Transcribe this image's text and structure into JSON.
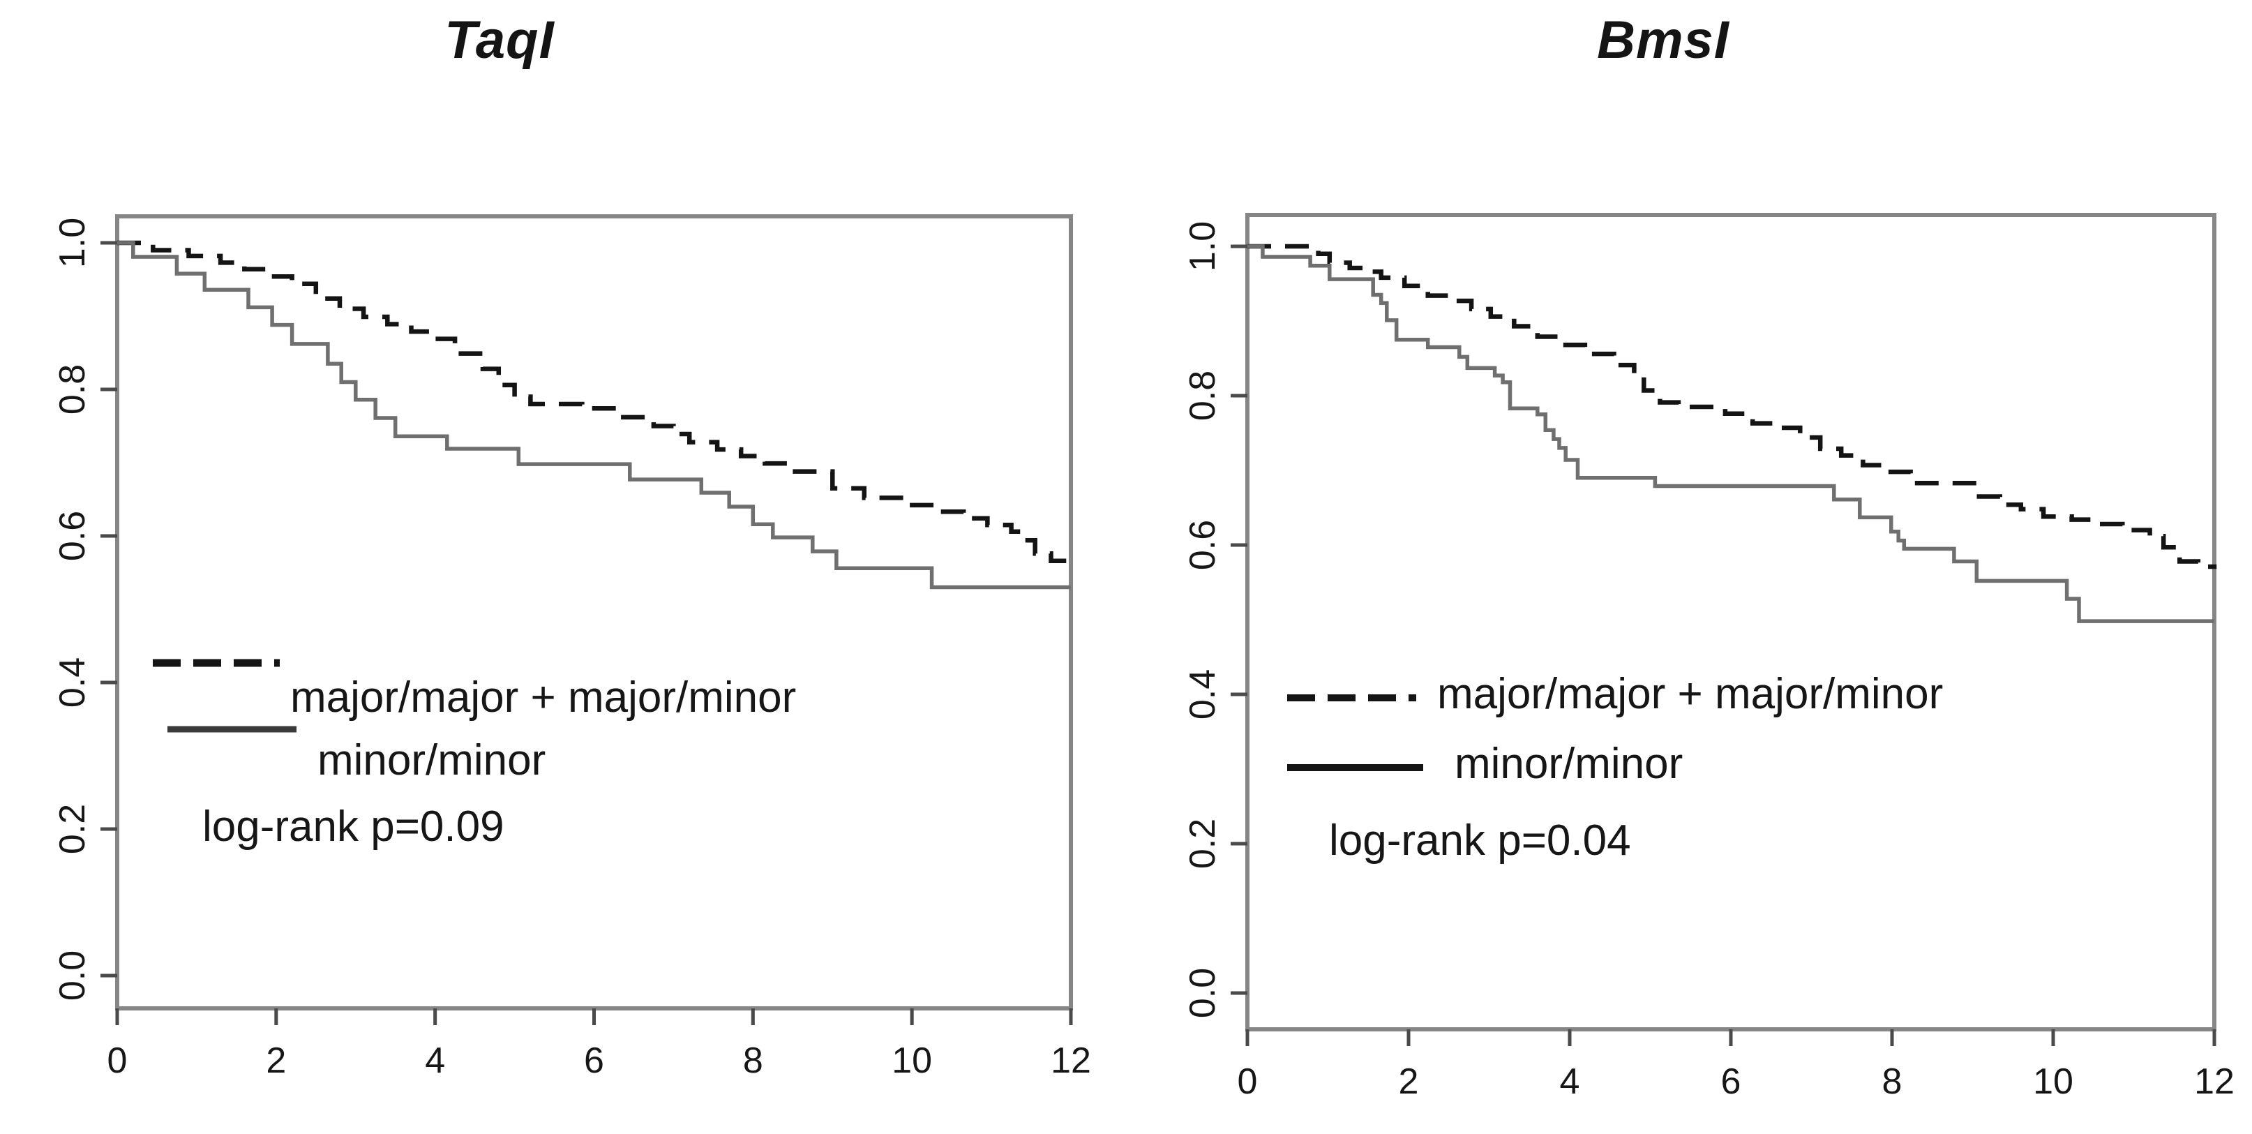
{
  "chart_data": [
    {
      "id": "taqi",
      "type": "line",
      "subtype": "kaplan-meier-step",
      "title": "TaqI",
      "xlabel": "",
      "ylabel": "",
      "xlim": [
        0,
        12
      ],
      "ylim": [
        0.0,
        1.0
      ],
      "grid": false,
      "xticks": [
        "0",
        "2",
        "4",
        "6",
        "8",
        "10",
        "12"
      ],
      "yticks": [
        "1.0",
        "0.8",
        "0.6",
        "0.4",
        "0.2",
        "0.0"
      ],
      "legend": {
        "position": "inside-left-middle",
        "dashed_label": "major/major + major/minor",
        "solid_label": "minor/minor",
        "stat": "log-rank p=0.09"
      },
      "colors": {
        "dashed": "#141414",
        "solid": "#6f6f6f",
        "axis": "#868686",
        "tick": "#4a4a4a",
        "text": "#161616"
      },
      "series": [
        {
          "name": "major/major + major/minor",
          "style": "dashed",
          "points": [
            [
              0,
              1.0
            ],
            [
              0.45,
              0.99
            ],
            [
              0.9,
              0.982
            ],
            [
              1.3,
              0.973
            ],
            [
              1.6,
              0.964
            ],
            [
              1.9,
              0.954
            ],
            [
              2.2,
              0.944
            ],
            [
              2.5,
              0.924
            ],
            [
              2.8,
              0.91
            ],
            [
              3.1,
              0.899
            ],
            [
              3.4,
              0.889
            ],
            [
              3.7,
              0.879
            ],
            [
              4.0,
              0.869
            ],
            [
              4.25,
              0.849
            ],
            [
              4.6,
              0.828
            ],
            [
              4.8,
              0.806
            ],
            [
              5.0,
              0.79
            ],
            [
              5.2,
              0.78
            ],
            [
              5.85,
              0.774
            ],
            [
              6.3,
              0.762
            ],
            [
              6.75,
              0.75
            ],
            [
              7.0,
              0.739
            ],
            [
              7.2,
              0.728
            ],
            [
              7.55,
              0.718
            ],
            [
              7.85,
              0.709
            ],
            [
              8.15,
              0.699
            ],
            [
              8.45,
              0.688
            ],
            [
              9.0,
              0.665
            ],
            [
              9.4,
              0.652
            ],
            [
              9.9,
              0.642
            ],
            [
              10.3,
              0.633
            ],
            [
              10.65,
              0.624
            ],
            [
              10.95,
              0.615
            ],
            [
              11.25,
              0.606
            ],
            [
              11.4,
              0.594
            ],
            [
              11.55,
              0.576
            ],
            [
              11.75,
              0.566
            ],
            [
              12,
              0.561
            ]
          ]
        },
        {
          "name": "minor/minor",
          "style": "solid",
          "points": [
            [
              0,
              1.0
            ],
            [
              0.2,
              0.981
            ],
            [
              0.75,
              0.958
            ],
            [
              1.1,
              0.936
            ],
            [
              1.65,
              0.912
            ],
            [
              1.95,
              0.888
            ],
            [
              2.2,
              0.862
            ],
            [
              2.65,
              0.835
            ],
            [
              2.82,
              0.81
            ],
            [
              3.0,
              0.786
            ],
            [
              3.25,
              0.761
            ],
            [
              3.5,
              0.736
            ],
            [
              4.15,
              0.719
            ],
            [
              5.05,
              0.698
            ],
            [
              6.45,
              0.677
            ],
            [
              7.35,
              0.659
            ],
            [
              7.7,
              0.64
            ],
            [
              8.0,
              0.616
            ],
            [
              8.25,
              0.598
            ],
            [
              8.75,
              0.579
            ],
            [
              9.05,
              0.556
            ],
            [
              10.25,
              0.53
            ],
            [
              12,
              0.53
            ]
          ]
        }
      ]
    },
    {
      "id": "bmsi",
      "type": "line",
      "subtype": "kaplan-meier-step",
      "title": "BmsI",
      "xlabel": "",
      "ylabel": "",
      "xlim": [
        0,
        12
      ],
      "ylim": [
        0.0,
        1.0
      ],
      "grid": false,
      "xticks": [
        "0",
        "2",
        "4",
        "6",
        "8",
        "10",
        "12"
      ],
      "yticks": [
        "1.0",
        "0.8",
        "0.6",
        "0.4",
        "0.2",
        "0.0"
      ],
      "legend": {
        "position": "inside-left-middle",
        "dashed_label": "major/major + major/minor",
        "solid_label": "minor/minor",
        "stat": "log-rank p=0.04"
      },
      "colors": {
        "dashed": "#141414",
        "solid": "#6f6f6f",
        "axis": "#868686",
        "tick": "#4a4a4a",
        "text": "#161616"
      },
      "series": [
        {
          "name": "major/major + major/minor",
          "style": "dashed",
          "points": [
            [
              0,
              1.0
            ],
            [
              0.88,
              0.99
            ],
            [
              1.02,
              0.978
            ],
            [
              1.27,
              0.971
            ],
            [
              1.46,
              0.966
            ],
            [
              1.66,
              0.958
            ],
            [
              1.95,
              0.947
            ],
            [
              2.24,
              0.934
            ],
            [
              2.53,
              0.927
            ],
            [
              2.78,
              0.916
            ],
            [
              3.02,
              0.906
            ],
            [
              3.31,
              0.893
            ],
            [
              3.6,
              0.879
            ],
            [
              3.9,
              0.868
            ],
            [
              4.19,
              0.856
            ],
            [
              4.55,
              0.841
            ],
            [
              4.8,
              0.825
            ],
            [
              4.92,
              0.807
            ],
            [
              5.12,
              0.791
            ],
            [
              5.35,
              0.785
            ],
            [
              5.93,
              0.776
            ],
            [
              6.27,
              0.763
            ],
            [
              6.57,
              0.757
            ],
            [
              6.86,
              0.744
            ],
            [
              7.11,
              0.729
            ],
            [
              7.37,
              0.72
            ],
            [
              7.64,
              0.707
            ],
            [
              7.93,
              0.698
            ],
            [
              8.23,
              0.683
            ],
            [
              9.05,
              0.665
            ],
            [
              9.34,
              0.654
            ],
            [
              9.6,
              0.648
            ],
            [
              9.88,
              0.638
            ],
            [
              10.23,
              0.634
            ],
            [
              10.56,
              0.628
            ],
            [
              10.86,
              0.62
            ],
            [
              11.2,
              0.612
            ],
            [
              11.37,
              0.597
            ],
            [
              11.57,
              0.578
            ],
            [
              11.8,
              0.571
            ],
            [
              12,
              0.568
            ]
          ]
        },
        {
          "name": "minor/minor",
          "style": "solid",
          "points": [
            [
              0,
              1.0
            ],
            [
              0.19,
              0.986
            ],
            [
              0.78,
              0.974
            ],
            [
              1.02,
              0.956
            ],
            [
              1.56,
              0.935
            ],
            [
              1.66,
              0.924
            ],
            [
              1.73,
              0.901
            ],
            [
              1.85,
              0.875
            ],
            [
              2.24,
              0.865
            ],
            [
              2.63,
              0.852
            ],
            [
              2.73,
              0.837
            ],
            [
              3.07,
              0.827
            ],
            [
              3.17,
              0.818
            ],
            [
              3.26,
              0.783
            ],
            [
              3.6,
              0.775
            ],
            [
              3.7,
              0.754
            ],
            [
              3.8,
              0.742
            ],
            [
              3.87,
              0.73
            ],
            [
              3.95,
              0.714
            ],
            [
              4.1,
              0.69
            ],
            [
              5.06,
              0.679
            ],
            [
              7.28,
              0.661
            ],
            [
              7.6,
              0.637
            ],
            [
              7.99,
              0.618
            ],
            [
              8.08,
              0.606
            ],
            [
              8.15,
              0.595
            ],
            [
              8.77,
              0.578
            ],
            [
              9.05,
              0.552
            ],
            [
              10.17,
              0.528
            ],
            [
              10.32,
              0.498
            ],
            [
              12,
              0.498
            ]
          ]
        }
      ]
    }
  ]
}
